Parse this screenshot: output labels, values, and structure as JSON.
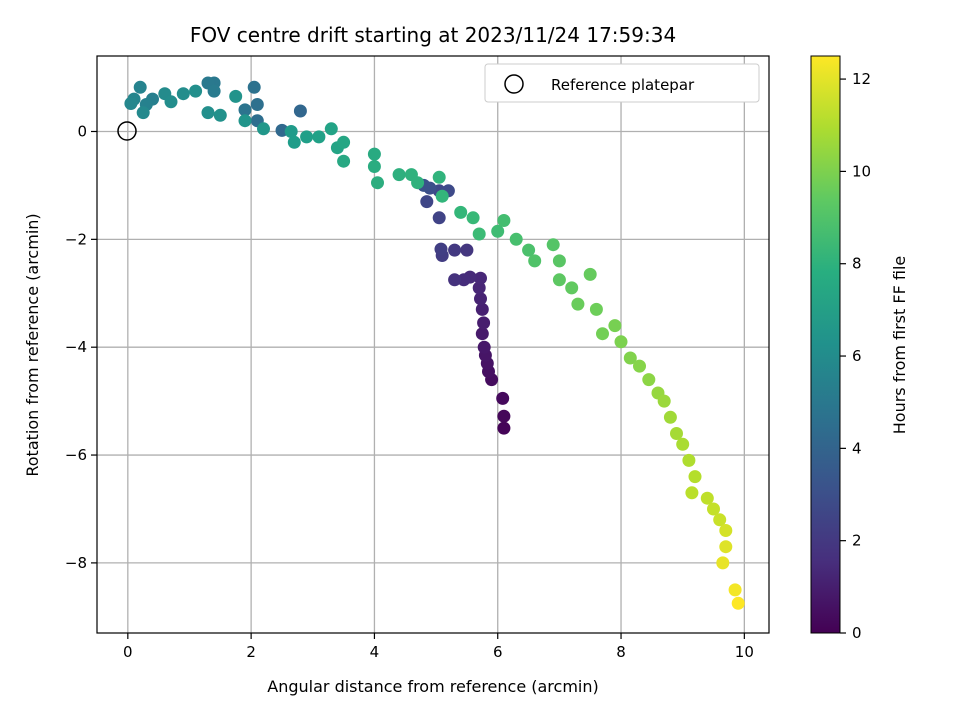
{
  "chart_data": {
    "type": "scatter",
    "title": "FOV centre drift starting at 2023/11/24 17:59:34",
    "xlabel": "Angular distance from reference (arcmin)",
    "ylabel": "Rotation from reference (arcmin)",
    "xlim": [
      -0.5,
      10.4
    ],
    "ylim": [
      -9.3,
      1.4
    ],
    "xticks": [
      0,
      2,
      4,
      6,
      8,
      10
    ],
    "yticks": [
      0,
      -2,
      -4,
      -6,
      -8
    ],
    "grid": true,
    "legend": {
      "placement": "top-right",
      "entries": [
        "Reference platepar"
      ]
    },
    "reference_point": {
      "x": 0,
      "y": 0,
      "label": "Reference platepar"
    },
    "colorbar": {
      "label": "Hours from first FF file",
      "colormap": "viridis",
      "range": [
        0,
        12.5
      ],
      "ticks": [
        0,
        2,
        4,
        6,
        8,
        10,
        12
      ]
    },
    "series": [
      {
        "points": [
          {
            "x": 6.1,
            "y": -5.5,
            "h": 0.1
          },
          {
            "x": 6.1,
            "y": -5.28,
            "h": 0.2
          },
          {
            "x": 6.08,
            "y": -4.95,
            "h": 0.3
          },
          {
            "x": 5.9,
            "y": -4.6,
            "h": 0.4
          },
          {
            "x": 5.85,
            "y": -4.45,
            "h": 0.5
          },
          {
            "x": 5.83,
            "y": -4.3,
            "h": 0.6
          },
          {
            "x": 5.8,
            "y": -4.15,
            "h": 0.7
          },
          {
            "x": 5.78,
            "y": -4.0,
            "h": 0.8
          },
          {
            "x": 5.75,
            "y": -3.75,
            "h": 0.9
          },
          {
            "x": 5.77,
            "y": -3.55,
            "h": 1.0
          },
          {
            "x": 5.75,
            "y": -3.3,
            "h": 1.1
          },
          {
            "x": 5.72,
            "y": -3.1,
            "h": 1.2
          },
          {
            "x": 5.7,
            "y": -2.9,
            "h": 1.3
          },
          {
            "x": 5.72,
            "y": -2.72,
            "h": 1.4
          },
          {
            "x": 5.55,
            "y": -2.7,
            "h": 1.5
          },
          {
            "x": 5.45,
            "y": -2.75,
            "h": 1.6
          },
          {
            "x": 5.3,
            "y": -2.75,
            "h": 1.8
          },
          {
            "x": 5.5,
            "y": -2.2,
            "h": 2.0
          },
          {
            "x": 5.3,
            "y": -2.2,
            "h": 2.1
          },
          {
            "x": 5.1,
            "y": -2.3,
            "h": 2.2
          },
          {
            "x": 5.08,
            "y": -2.18,
            "h": 2.3
          },
          {
            "x": 5.05,
            "y": -1.6,
            "h": 2.5
          },
          {
            "x": 4.85,
            "y": -1.3,
            "h": 2.6
          },
          {
            "x": 5.05,
            "y": -1.1,
            "h": 2.7
          },
          {
            "x": 5.2,
            "y": -1.1,
            "h": 2.8
          },
          {
            "x": 4.9,
            "y": -1.05,
            "h": 3.0
          },
          {
            "x": 4.8,
            "y": -1.0,
            "h": 3.1
          },
          {
            "x": 2.8,
            "y": 0.38,
            "h": 4.1
          },
          {
            "x": 2.5,
            "y": 0.02,
            "h": 4.2
          },
          {
            "x": 2.1,
            "y": 0.2,
            "h": 4.5
          },
          {
            "x": 2.1,
            "y": 0.5,
            "h": 4.6
          },
          {
            "x": 2.05,
            "y": 0.82,
            "h": 4.7
          },
          {
            "x": 1.9,
            "y": 0.4,
            "h": 4.8
          },
          {
            "x": 1.4,
            "y": 0.9,
            "h": 5.0
          },
          {
            "x": 1.3,
            "y": 0.9,
            "h": 5.1
          },
          {
            "x": 1.4,
            "y": 0.75,
            "h": 5.2
          },
          {
            "x": 0.4,
            "y": 0.6,
            "h": 5.4
          },
          {
            "x": 0.3,
            "y": 0.5,
            "h": 5.5
          },
          {
            "x": 0.2,
            "y": 0.82,
            "h": 5.6
          },
          {
            "x": 0.1,
            "y": 0.6,
            "h": 5.7
          },
          {
            "x": 0.05,
            "y": 0.52,
            "h": 5.8
          },
          {
            "x": 0.25,
            "y": 0.35,
            "h": 5.9
          },
          {
            "x": 0.6,
            "y": 0.7,
            "h": 6.0
          },
          {
            "x": 0.7,
            "y": 0.55,
            "h": 6.1
          },
          {
            "x": 0.9,
            "y": 0.7,
            "h": 6.1
          },
          {
            "x": 1.1,
            "y": 0.75,
            "h": 6.2
          },
          {
            "x": 1.3,
            "y": 0.35,
            "h": 6.2
          },
          {
            "x": 1.5,
            "y": 0.3,
            "h": 6.3
          },
          {
            "x": 1.75,
            "y": 0.65,
            "h": 6.4
          },
          {
            "x": 1.9,
            "y": 0.2,
            "h": 6.5
          },
          {
            "x": 2.2,
            "y": 0.05,
            "h": 6.6
          },
          {
            "x": 2.65,
            "y": 0.0,
            "h": 6.8
          },
          {
            "x": 2.7,
            "y": -0.2,
            "h": 6.9
          },
          {
            "x": 2.9,
            "y": -0.1,
            "h": 7.0
          },
          {
            "x": 3.1,
            "y": -0.1,
            "h": 7.1
          },
          {
            "x": 3.3,
            "y": 0.05,
            "h": 7.2
          },
          {
            "x": 3.4,
            "y": -0.3,
            "h": 7.3
          },
          {
            "x": 3.5,
            "y": -0.2,
            "h": 7.4
          },
          {
            "x": 3.5,
            "y": -0.55,
            "h": 7.5
          },
          {
            "x": 4.0,
            "y": -0.42,
            "h": 7.6
          },
          {
            "x": 4.0,
            "y": -0.65,
            "h": 7.7
          },
          {
            "x": 4.05,
            "y": -0.95,
            "h": 7.8
          },
          {
            "x": 4.4,
            "y": -0.8,
            "h": 7.9
          },
          {
            "x": 4.6,
            "y": -0.8,
            "h": 8.0
          },
          {
            "x": 4.7,
            "y": -0.95,
            "h": 8.0
          },
          {
            "x": 5.05,
            "y": -0.85,
            "h": 8.1
          },
          {
            "x": 5.1,
            "y": -1.2,
            "h": 8.2
          },
          {
            "x": 5.4,
            "y": -1.5,
            "h": 8.3
          },
          {
            "x": 5.6,
            "y": -1.6,
            "h": 8.4
          },
          {
            "x": 5.7,
            "y": -1.9,
            "h": 8.5
          },
          {
            "x": 6.0,
            "y": -1.85,
            "h": 8.6
          },
          {
            "x": 6.1,
            "y": -1.65,
            "h": 8.7
          },
          {
            "x": 6.3,
            "y": -2.0,
            "h": 8.8
          },
          {
            "x": 6.5,
            "y": -2.2,
            "h": 8.9
          },
          {
            "x": 6.6,
            "y": -2.4,
            "h": 9.0
          },
          {
            "x": 6.9,
            "y": -2.1,
            "h": 9.1
          },
          {
            "x": 7.0,
            "y": -2.4,
            "h": 9.2
          },
          {
            "x": 7.0,
            "y": -2.75,
            "h": 9.3
          },
          {
            "x": 7.2,
            "y": -2.9,
            "h": 9.4
          },
          {
            "x": 7.5,
            "y": -2.65,
            "h": 9.5
          },
          {
            "x": 7.3,
            "y": -3.2,
            "h": 9.6
          },
          {
            "x": 7.6,
            "y": -3.3,
            "h": 9.7
          },
          {
            "x": 7.7,
            "y": -3.75,
            "h": 9.8
          },
          {
            "x": 7.9,
            "y": -3.6,
            "h": 9.9
          },
          {
            "x": 8.0,
            "y": -3.9,
            "h": 10.0
          },
          {
            "x": 8.15,
            "y": -4.2,
            "h": 10.1
          },
          {
            "x": 8.3,
            "y": -4.35,
            "h": 10.2
          },
          {
            "x": 8.45,
            "y": -4.6,
            "h": 10.3
          },
          {
            "x": 8.6,
            "y": -4.85,
            "h": 10.5
          },
          {
            "x": 8.7,
            "y": -5.0,
            "h": 10.6
          },
          {
            "x": 8.8,
            "y": -5.3,
            "h": 10.7
          },
          {
            "x": 8.9,
            "y": -5.6,
            "h": 10.8
          },
          {
            "x": 9.0,
            "y": -5.8,
            "h": 10.9
          },
          {
            "x": 9.1,
            "y": -6.1,
            "h": 11.0
          },
          {
            "x": 9.2,
            "y": -6.4,
            "h": 11.1
          },
          {
            "x": 9.15,
            "y": -6.7,
            "h": 11.2
          },
          {
            "x": 9.4,
            "y": -6.8,
            "h": 11.3
          },
          {
            "x": 9.5,
            "y": -7.0,
            "h": 11.4
          },
          {
            "x": 9.6,
            "y": -7.2,
            "h": 11.5
          },
          {
            "x": 9.7,
            "y": -7.4,
            "h": 11.7
          },
          {
            "x": 9.7,
            "y": -7.7,
            "h": 11.9
          },
          {
            "x": 9.65,
            "y": -8.0,
            "h": 12.1
          },
          {
            "x": 9.85,
            "y": -8.5,
            "h": 12.3
          },
          {
            "x": 9.9,
            "y": -8.75,
            "h": 12.5
          }
        ]
      }
    ]
  }
}
